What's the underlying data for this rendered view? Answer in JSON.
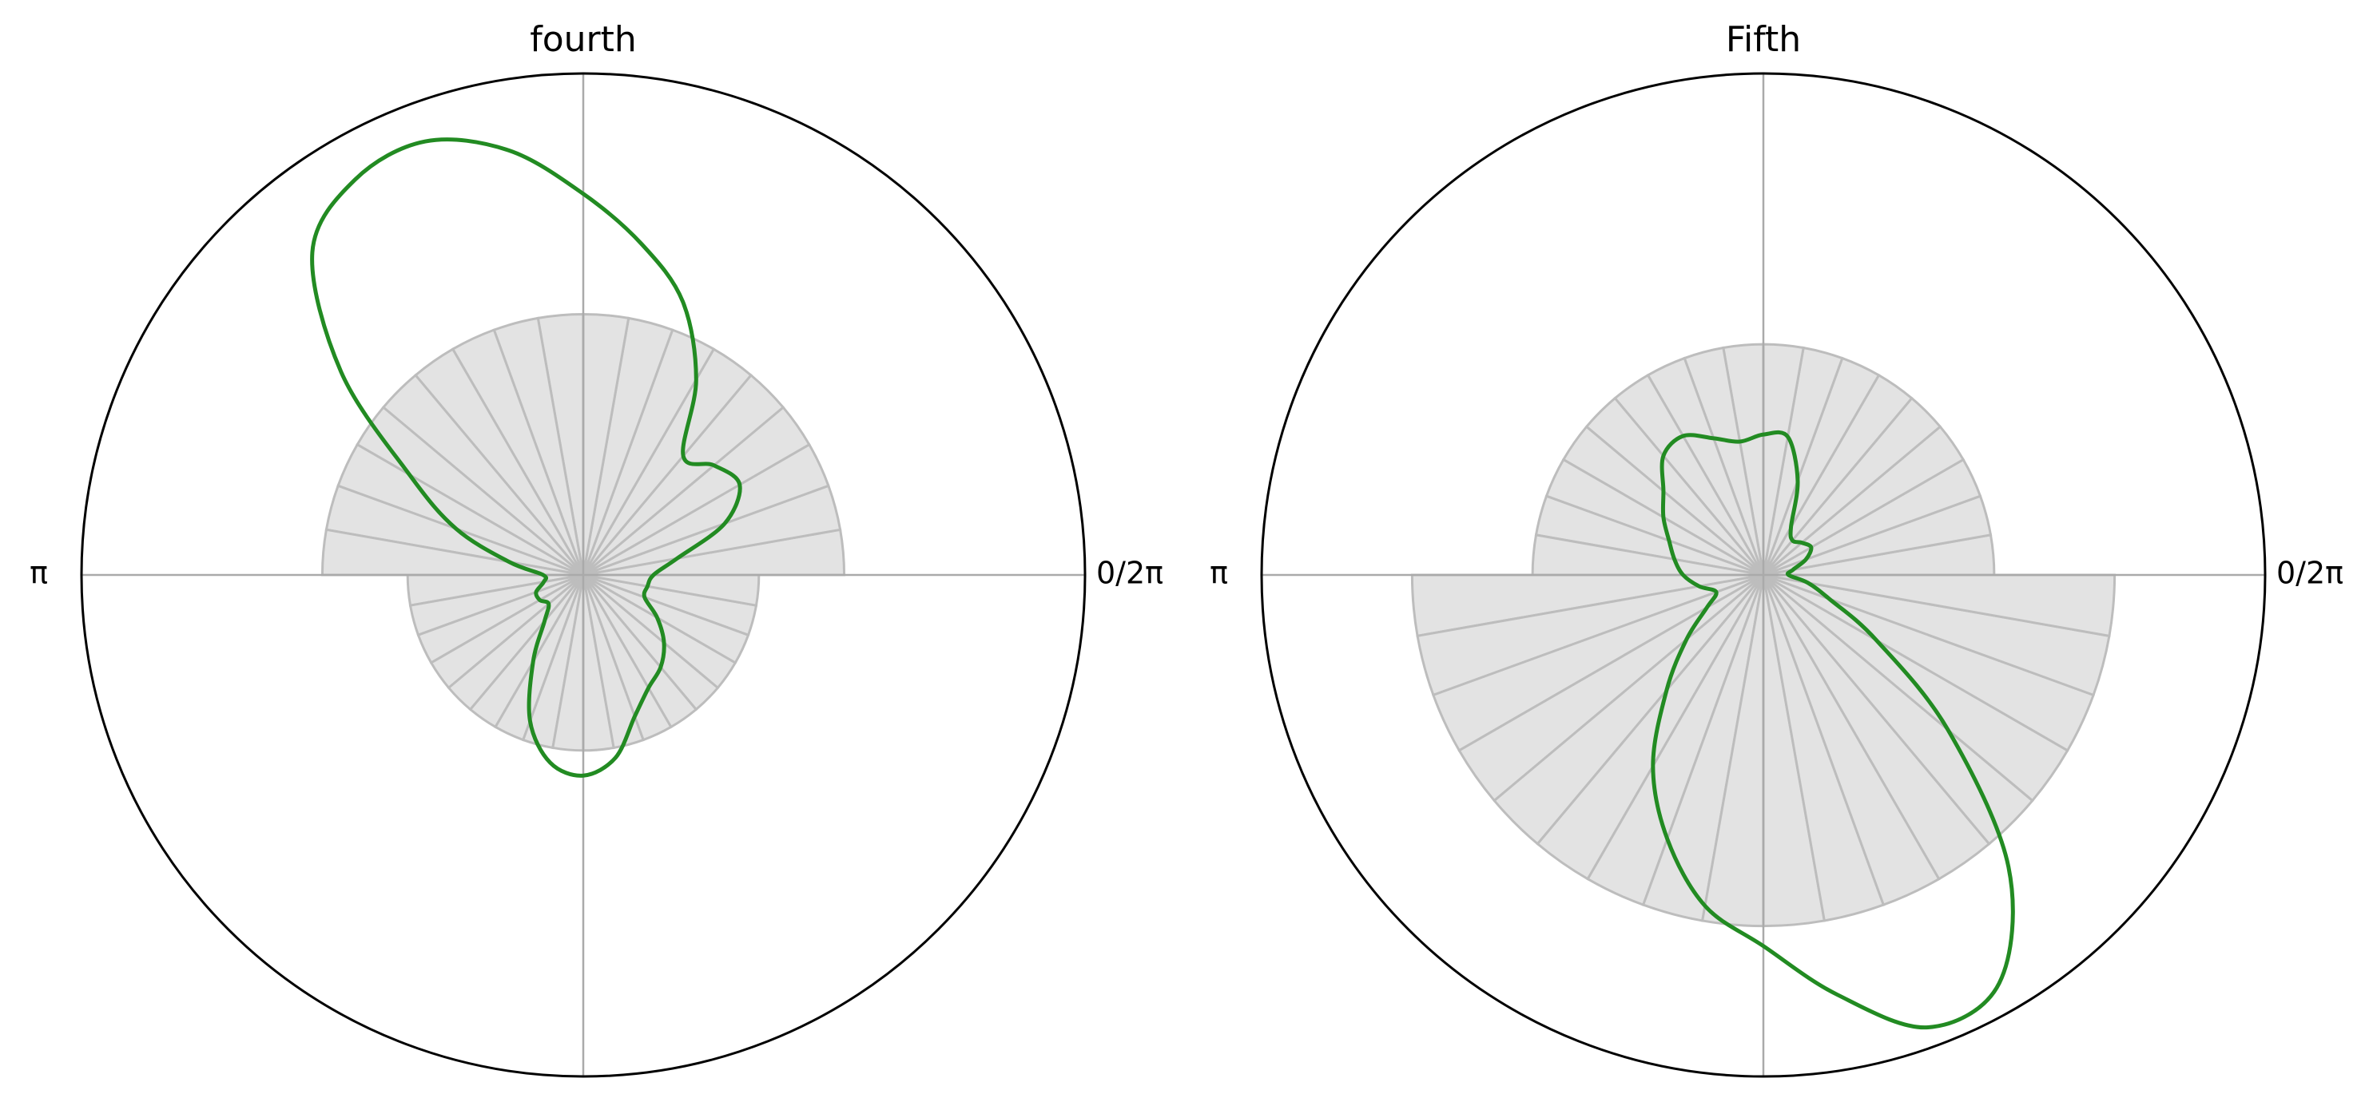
{
  "chart_data": [
    {
      "type": "polar",
      "title": "fourth",
      "theta_tick_labels": [
        "0/2π",
        "π"
      ],
      "grid": true,
      "colors": {
        "curve": "#228b22",
        "bars": "#e3e3e3",
        "bar_edges": "#bdbdbd",
        "axis": "#aaaaaa",
        "circle": "#000000"
      },
      "histogram": {
        "bins": 36,
        "bin_width_deg": 10,
        "radii": [
          0.52,
          0.52,
          0.52,
          0.52,
          0.52,
          0.52,
          0.52,
          0.52,
          0.52,
          0.52,
          0.52,
          0.52,
          0.52,
          0.52,
          0.52,
          0.52,
          0.52,
          0.52,
          0.35,
          0.35,
          0.35,
          0.35,
          0.35,
          0.35,
          0.35,
          0.35,
          0.35,
          0.35,
          0.35,
          0.35,
          0.35,
          0.35,
          0.35,
          0.35,
          0.35,
          0.35
        ]
      },
      "density_curve": {
        "theta_deg": [
          0,
          10,
          20,
          30,
          40,
          50,
          60,
          70,
          80,
          90,
          100,
          110,
          120,
          130,
          140,
          150,
          160,
          170,
          180,
          190,
          200,
          210,
          220,
          230,
          240,
          250,
          260,
          270,
          280,
          290,
          300,
          310,
          320,
          330,
          340,
          350
        ],
        "r": [
          0.14,
          0.19,
          0.3,
          0.36,
          0.34,
          0.31,
          0.45,
          0.58,
          0.67,
          0.76,
          0.86,
          0.92,
          0.91,
          0.84,
          0.63,
          0.4,
          0.27,
          0.15,
          0.08,
          0.08,
          0.1,
          0.1,
          0.09,
          0.12,
          0.2,
          0.31,
          0.38,
          0.4,
          0.37,
          0.3,
          0.26,
          0.24,
          0.21,
          0.17,
          0.13,
          0.13
        ]
      }
    },
    {
      "type": "polar",
      "title": "Fifth",
      "theta_tick_labels": [
        "0/2π",
        "π"
      ],
      "grid": true,
      "colors": {
        "curve": "#228b22",
        "bars": "#e3e3e3",
        "bar_edges": "#bdbdbd",
        "axis": "#aaaaaa",
        "circle": "#000000"
      },
      "histogram": {
        "bins": 36,
        "bin_width_deg": 10,
        "radii": [
          0.46,
          0.46,
          0.46,
          0.46,
          0.46,
          0.46,
          0.46,
          0.46,
          0.46,
          0.46,
          0.46,
          0.46,
          0.46,
          0.46,
          0.46,
          0.46,
          0.46,
          0.46,
          0.7,
          0.7,
          0.7,
          0.7,
          0.7,
          0.7,
          0.7,
          0.7,
          0.7,
          0.7,
          0.7,
          0.7,
          0.7,
          0.7,
          0.7,
          0.7,
          0.7,
          0.7
        ]
      },
      "density_curve": {
        "theta_deg": [
          0,
          10,
          20,
          30,
          40,
          50,
          60,
          70,
          80,
          90,
          100,
          110,
          120,
          130,
          140,
          150,
          160,
          170,
          180,
          190,
          200,
          210,
          220,
          230,
          240,
          250,
          260,
          270,
          280,
          290,
          300,
          310,
          320,
          330,
          340,
          350
        ],
        "r": [
          0.05,
          0.06,
          0.09,
          0.11,
          0.1,
          0.09,
          0.11,
          0.2,
          0.28,
          0.28,
          0.27,
          0.29,
          0.32,
          0.31,
          0.26,
          0.23,
          0.2,
          0.18,
          0.16,
          0.13,
          0.1,
          0.13,
          0.2,
          0.3,
          0.44,
          0.56,
          0.67,
          0.74,
          0.85,
          0.96,
          0.94,
          0.76,
          0.48,
          0.26,
          0.14,
          0.09
        ]
      }
    }
  ]
}
